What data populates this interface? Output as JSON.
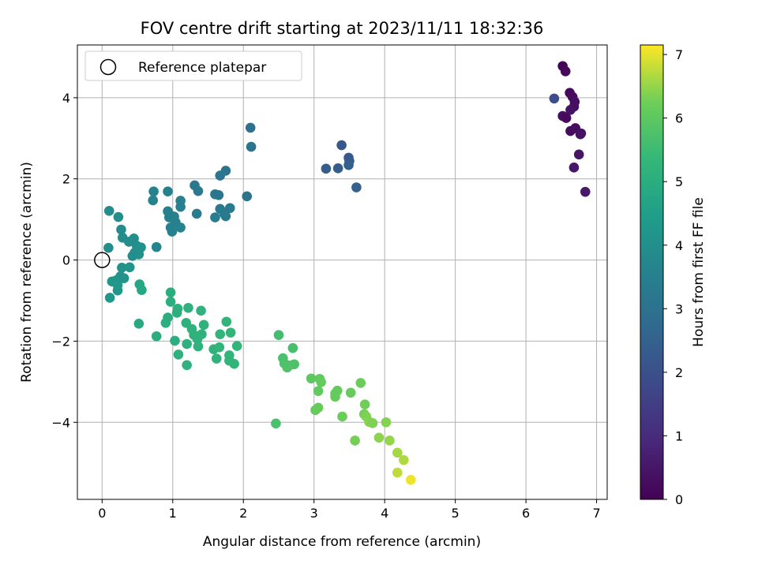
{
  "chart_data": {
    "type": "scatter",
    "title": "FOV centre drift starting at 2023/11/11 18:32:36",
    "xlabel": "Angular distance from reference (arcmin)",
    "ylabel": "Rotation from reference (arcmin)",
    "xlim": [
      -0.35,
      7.15
    ],
    "ylim": [
      -5.9,
      5.3
    ],
    "xticks": [
      0,
      1,
      2,
      3,
      4,
      5,
      6,
      7
    ],
    "yticks": [
      -4,
      -2,
      0,
      2,
      4
    ],
    "grid": true,
    "legend": {
      "position": "top-left",
      "entries": [
        "Reference platepar"
      ]
    },
    "colorbar": {
      "label": "Hours from first FF file",
      "range": [
        0,
        7.15
      ],
      "ticks": [
        0,
        1,
        2,
        3,
        4,
        5,
        6,
        7
      ],
      "colormap": "viridis"
    },
    "reference_point": {
      "x": 0,
      "y": 0
    },
    "points": [
      {
        "x": 6.52,
        "y": 4.78,
        "h": 0.1
      },
      {
        "x": 6.56,
        "y": 4.65,
        "h": 0.15
      },
      {
        "x": 6.62,
        "y": 4.12,
        "h": 0.2
      },
      {
        "x": 6.66,
        "y": 4.02,
        "h": 0.25
      },
      {
        "x": 6.69,
        "y": 3.9,
        "h": 0.3
      },
      {
        "x": 6.68,
        "y": 3.78,
        "h": 0.35
      },
      {
        "x": 6.63,
        "y": 3.7,
        "h": 0.4
      },
      {
        "x": 6.52,
        "y": 3.55,
        "h": 0.3
      },
      {
        "x": 6.57,
        "y": 3.5,
        "h": 0.2
      },
      {
        "x": 6.63,
        "y": 3.18,
        "h": 0.25
      },
      {
        "x": 6.7,
        "y": 3.25,
        "h": 0.3
      },
      {
        "x": 6.78,
        "y": 3.12,
        "h": 0.35
      },
      {
        "x": 6.77,
        "y": 3.1,
        "h": 0.4
      },
      {
        "x": 6.75,
        "y": 2.6,
        "h": 0.45
      },
      {
        "x": 6.68,
        "y": 2.28,
        "h": 0.5
      },
      {
        "x": 6.84,
        "y": 1.68,
        "h": 0.55
      },
      {
        "x": 6.4,
        "y": 3.98,
        "h": 1.9
      },
      {
        "x": 3.39,
        "y": 2.83,
        "h": 2.2
      },
      {
        "x": 3.49,
        "y": 2.52,
        "h": 2.25
      },
      {
        "x": 3.5,
        "y": 2.44,
        "h": 2.3
      },
      {
        "x": 3.17,
        "y": 2.25,
        "h": 2.35
      },
      {
        "x": 3.34,
        "y": 2.26,
        "h": 2.4
      },
      {
        "x": 3.49,
        "y": 2.34,
        "h": 2.45
      },
      {
        "x": 3.6,
        "y": 1.79,
        "h": 2.5
      },
      {
        "x": 2.1,
        "y": 3.26,
        "h": 3.0
      },
      {
        "x": 2.11,
        "y": 2.79,
        "h": 3.05
      },
      {
        "x": 1.75,
        "y": 2.2,
        "h": 3.1
      },
      {
        "x": 1.67,
        "y": 2.08,
        "h": 3.15
      },
      {
        "x": 1.31,
        "y": 1.84,
        "h": 3.2
      },
      {
        "x": 1.36,
        "y": 1.7,
        "h": 3.25
      },
      {
        "x": 1.6,
        "y": 1.62,
        "h": 3.2
      },
      {
        "x": 1.65,
        "y": 1.6,
        "h": 3.15
      },
      {
        "x": 2.05,
        "y": 1.57,
        "h": 3.1
      },
      {
        "x": 1.81,
        "y": 1.28,
        "h": 3.25
      },
      {
        "x": 1.67,
        "y": 1.26,
        "h": 3.3
      },
      {
        "x": 1.73,
        "y": 1.14,
        "h": 3.35
      },
      {
        "x": 1.6,
        "y": 1.05,
        "h": 3.4
      },
      {
        "x": 1.75,
        "y": 1.08,
        "h": 3.3
      },
      {
        "x": 1.34,
        "y": 1.14,
        "h": 3.35
      },
      {
        "x": 0.73,
        "y": 1.69,
        "h": 3.6
      },
      {
        "x": 0.93,
        "y": 1.69,
        "h": 3.55
      },
      {
        "x": 0.72,
        "y": 1.47,
        "h": 3.6
      },
      {
        "x": 1.11,
        "y": 1.46,
        "h": 3.5
      },
      {
        "x": 1.11,
        "y": 1.31,
        "h": 3.5
      },
      {
        "x": 0.93,
        "y": 1.2,
        "h": 3.55
      },
      {
        "x": 0.97,
        "y": 1.1,
        "h": 3.6
      },
      {
        "x": 0.95,
        "y": 1.05,
        "h": 3.55
      },
      {
        "x": 1.02,
        "y": 1.07,
        "h": 3.5
      },
      {
        "x": 1.04,
        "y": 0.93,
        "h": 3.5
      },
      {
        "x": 0.97,
        "y": 0.8,
        "h": 3.55
      },
      {
        "x": 1.11,
        "y": 0.8,
        "h": 3.6
      },
      {
        "x": 0.99,
        "y": 0.7,
        "h": 3.55
      },
      {
        "x": 0.77,
        "y": 0.32,
        "h": 3.65
      },
      {
        "x": 0.1,
        "y": 1.21,
        "h": 3.9
      },
      {
        "x": 0.23,
        "y": 1.06,
        "h": 3.95
      },
      {
        "x": 0.27,
        "y": 0.75,
        "h": 3.9
      },
      {
        "x": 0.29,
        "y": 0.55,
        "h": 3.95
      },
      {
        "x": 0.45,
        "y": 0.53,
        "h": 4.0
      },
      {
        "x": 0.38,
        "y": 0.45,
        "h": 3.95
      },
      {
        "x": 0.49,
        "y": 0.35,
        "h": 4.0
      },
      {
        "x": 0.55,
        "y": 0.31,
        "h": 4.05
      },
      {
        "x": 0.46,
        "y": 0.18,
        "h": 4.0
      },
      {
        "x": 0.52,
        "y": 0.14,
        "h": 4.05
      },
      {
        "x": 0.43,
        "y": 0.1,
        "h": 4.0
      },
      {
        "x": 0.09,
        "y": 0.3,
        "h": 3.95
      },
      {
        "x": 0.28,
        "y": -0.19,
        "h": 4.1
      },
      {
        "x": 0.39,
        "y": -0.18,
        "h": 4.15
      },
      {
        "x": 0.2,
        "y": -0.5,
        "h": 4.2
      },
      {
        "x": 0.26,
        "y": -0.4,
        "h": 4.15
      },
      {
        "x": 0.31,
        "y": -0.45,
        "h": 4.1
      },
      {
        "x": 0.14,
        "y": -0.53,
        "h": 4.2
      },
      {
        "x": 0.22,
        "y": -0.62,
        "h": 4.25
      },
      {
        "x": 0.22,
        "y": -0.75,
        "h": 4.2
      },
      {
        "x": 0.11,
        "y": -0.93,
        "h": 4.25
      },
      {
        "x": 0.53,
        "y": -0.6,
        "h": 4.8
      },
      {
        "x": 0.56,
        "y": -0.74,
        "h": 4.8
      },
      {
        "x": 0.52,
        "y": -1.57,
        "h": 4.85
      },
      {
        "x": 0.97,
        "y": -0.8,
        "h": 5.0
      },
      {
        "x": 0.97,
        "y": -1.03,
        "h": 5.05
      },
      {
        "x": 1.07,
        "y": -1.2,
        "h": 5.1
      },
      {
        "x": 1.06,
        "y": -1.3,
        "h": 5.05
      },
      {
        "x": 1.22,
        "y": -1.18,
        "h": 5.1
      },
      {
        "x": 1.4,
        "y": -1.25,
        "h": 5.15
      },
      {
        "x": 0.93,
        "y": -1.42,
        "h": 5.0
      },
      {
        "x": 0.9,
        "y": -1.55,
        "h": 5.05
      },
      {
        "x": 1.19,
        "y": -1.55,
        "h": 5.1
      },
      {
        "x": 1.27,
        "y": -1.7,
        "h": 5.15
      },
      {
        "x": 1.44,
        "y": -1.6,
        "h": 5.2
      },
      {
        "x": 1.76,
        "y": -1.52,
        "h": 5.25
      },
      {
        "x": 1.3,
        "y": -1.85,
        "h": 5.2
      },
      {
        "x": 1.35,
        "y": -1.95,
        "h": 5.15
      },
      {
        "x": 1.41,
        "y": -1.83,
        "h": 5.2
      },
      {
        "x": 1.67,
        "y": -1.83,
        "h": 5.25
      },
      {
        "x": 1.82,
        "y": -1.79,
        "h": 5.3
      },
      {
        "x": 0.77,
        "y": -1.88,
        "h": 5.0
      },
      {
        "x": 1.03,
        "y": -1.99,
        "h": 5.05
      },
      {
        "x": 1.2,
        "y": -2.07,
        "h": 5.1
      },
      {
        "x": 1.36,
        "y": -2.13,
        "h": 5.15
      },
      {
        "x": 1.58,
        "y": -2.2,
        "h": 5.2
      },
      {
        "x": 1.66,
        "y": -2.15,
        "h": 5.25
      },
      {
        "x": 1.91,
        "y": -2.12,
        "h": 5.3
      },
      {
        "x": 1.08,
        "y": -2.33,
        "h": 5.1
      },
      {
        "x": 1.62,
        "y": -2.43,
        "h": 5.2
      },
      {
        "x": 1.8,
        "y": -2.35,
        "h": 5.25
      },
      {
        "x": 1.8,
        "y": -2.48,
        "h": 5.3
      },
      {
        "x": 1.87,
        "y": -2.56,
        "h": 5.3
      },
      {
        "x": 1.2,
        "y": -2.59,
        "h": 5.15
      },
      {
        "x": 2.5,
        "y": -1.85,
        "h": 5.6
      },
      {
        "x": 2.7,
        "y": -2.17,
        "h": 5.65
      },
      {
        "x": 2.56,
        "y": -2.42,
        "h": 5.7
      },
      {
        "x": 2.58,
        "y": -2.55,
        "h": 5.75
      },
      {
        "x": 2.65,
        "y": -2.6,
        "h": 5.8
      },
      {
        "x": 2.72,
        "y": -2.57,
        "h": 5.75
      },
      {
        "x": 2.62,
        "y": -2.65,
        "h": 5.8
      },
      {
        "x": 2.46,
        "y": -4.03,
        "h": 5.7
      },
      {
        "x": 2.96,
        "y": -2.92,
        "h": 6.0
      },
      {
        "x": 3.08,
        "y": -2.93,
        "h": 6.05
      },
      {
        "x": 3.1,
        "y": -3.01,
        "h": 6.1
      },
      {
        "x": 3.06,
        "y": -3.23,
        "h": 6.05
      },
      {
        "x": 3.33,
        "y": -3.22,
        "h": 6.1
      },
      {
        "x": 3.3,
        "y": -3.37,
        "h": 6.15
      },
      {
        "x": 3.3,
        "y": -3.29,
        "h": 6.1
      },
      {
        "x": 3.52,
        "y": -3.27,
        "h": 6.15
      },
      {
        "x": 3.66,
        "y": -3.03,
        "h": 6.2
      },
      {
        "x": 3.02,
        "y": -3.7,
        "h": 6.1
      },
      {
        "x": 3.06,
        "y": -3.64,
        "h": 6.15
      },
      {
        "x": 3.4,
        "y": -3.86,
        "h": 6.2
      },
      {
        "x": 3.72,
        "y": -3.56,
        "h": 6.25
      },
      {
        "x": 3.71,
        "y": -3.8,
        "h": 6.3
      },
      {
        "x": 3.74,
        "y": -3.86,
        "h": 6.35
      },
      {
        "x": 3.78,
        "y": -3.99,
        "h": 6.4
      },
      {
        "x": 3.83,
        "y": -4.02,
        "h": 6.35
      },
      {
        "x": 4.02,
        "y": -4.0,
        "h": 6.4
      },
      {
        "x": 3.58,
        "y": -4.45,
        "h": 6.3
      },
      {
        "x": 3.92,
        "y": -4.38,
        "h": 6.45
      },
      {
        "x": 4.07,
        "y": -4.45,
        "h": 6.5
      },
      {
        "x": 4.18,
        "y": -4.75,
        "h": 6.6
      },
      {
        "x": 4.27,
        "y": -4.93,
        "h": 6.65
      },
      {
        "x": 4.18,
        "y": -5.24,
        "h": 6.75
      },
      {
        "x": 4.37,
        "y": -5.42,
        "h": 7.05
      }
    ]
  }
}
